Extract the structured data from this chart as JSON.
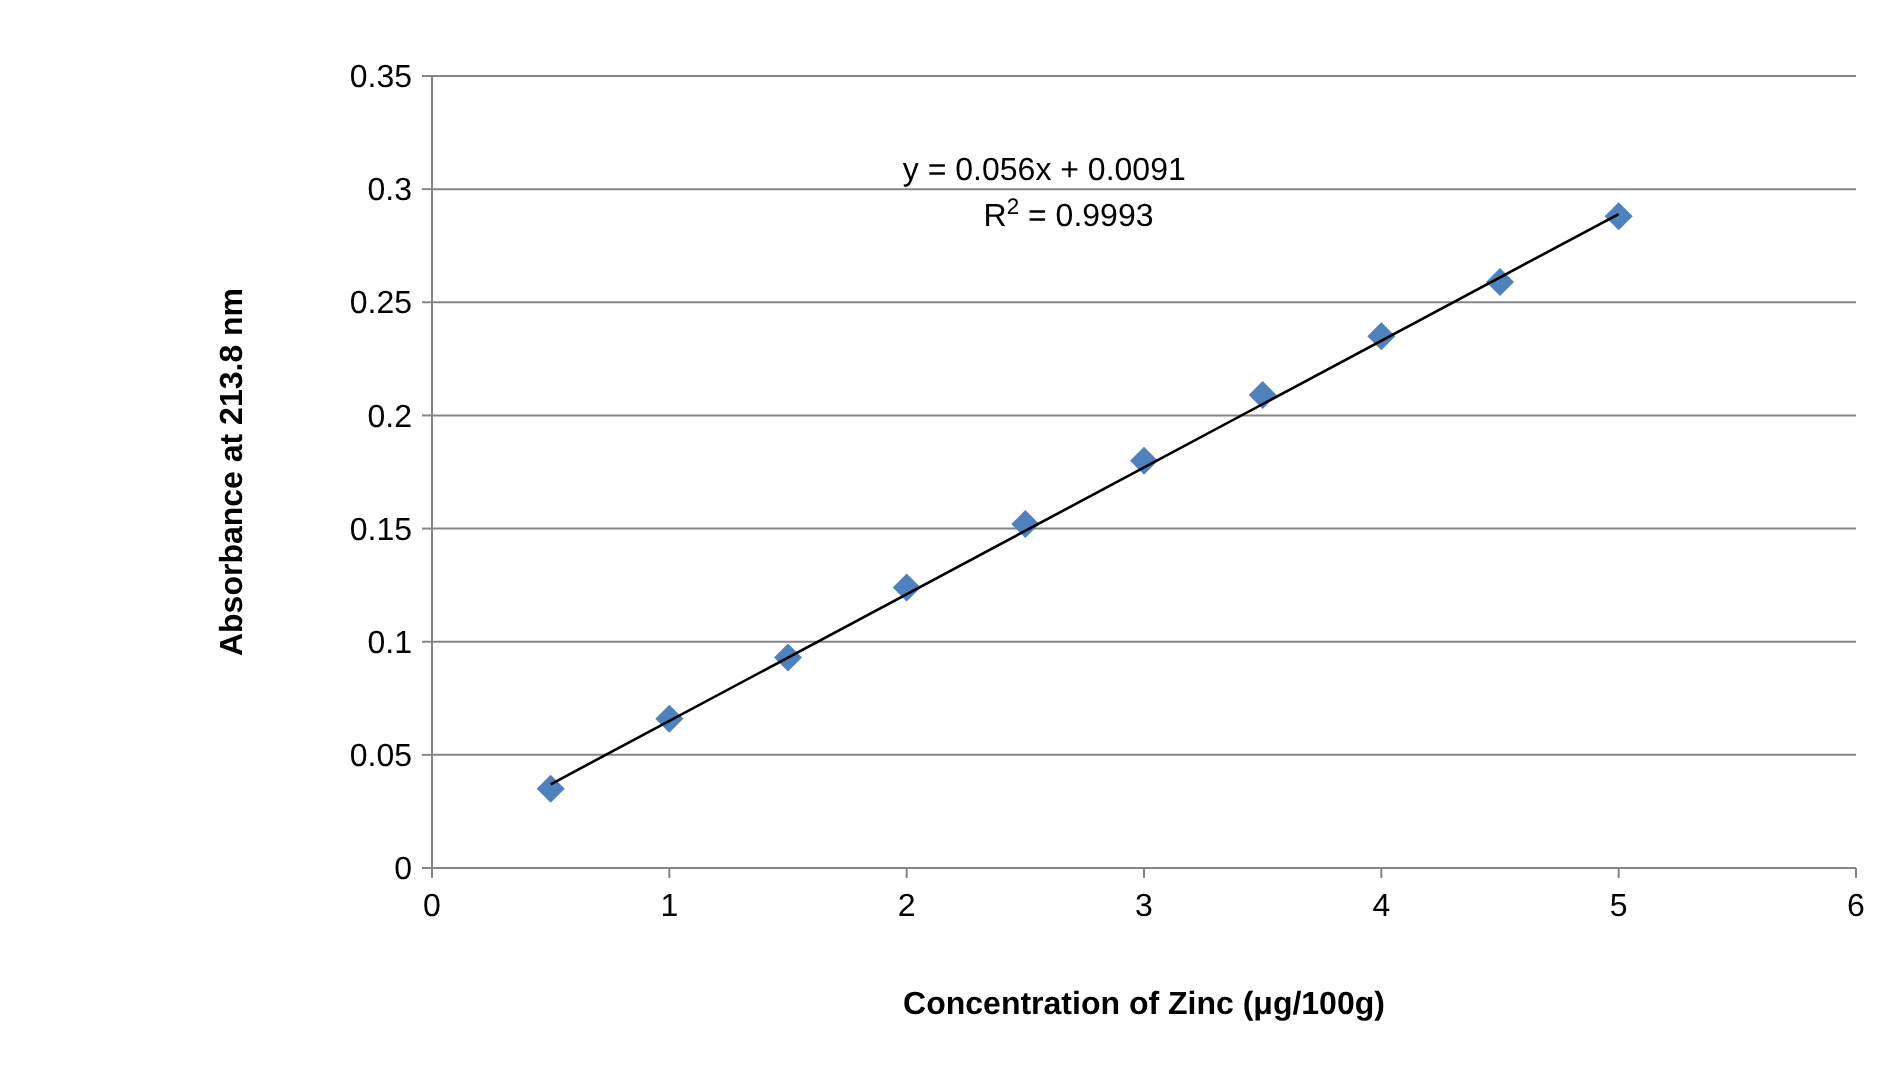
{
  "chart_data": {
    "type": "scatter",
    "xlabel": "Concentration  of Zinc (μg/100g)",
    "ylabel": "Absorbance at  213.8  nm",
    "x": [
      0.5,
      1,
      1.5,
      2,
      2.5,
      3,
      3.5,
      4,
      4.5,
      5
    ],
    "series": [
      {
        "color": "#4f81bd",
        "marker": "diamond",
        "values": [
          0.035,
          0.066,
          0.093,
          0.124,
          0.152,
          0.18,
          0.209,
          0.235,
          0.259,
          0.288
        ]
      },
      {
        "type": "line",
        "color": "#000000",
        "marker": "none",
        "x": [
          0.5,
          5
        ],
        "values": [
          0.037,
          0.289
        ]
      }
    ],
    "xlim": [
      0,
      6
    ],
    "xticks": [
      0,
      1,
      2,
      3,
      4,
      5,
      6
    ],
    "ylim": [
      0,
      0.35
    ],
    "yticks": [
      0,
      0.05,
      0.1,
      0.15,
      0.2,
      0.25,
      0.3,
      0.35
    ],
    "grid": "y",
    "annotations": [
      "y = 0.056x + 0.0091",
      "R$^{2}$ = 0.9993"
    ]
  }
}
